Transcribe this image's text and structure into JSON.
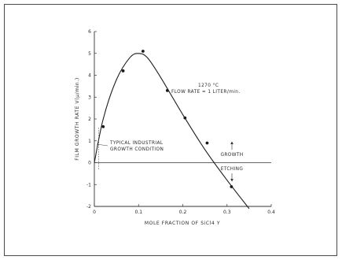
{
  "chart_data": {
    "type": "line",
    "xlabel": "MOLE FRACTION OF SiCl4 Y",
    "ylabel": "FILM GROWTH RATE V(μ/min.)",
    "xlim": [
      0,
      0.4
    ],
    "ylim": [
      -2,
      6
    ],
    "x_ticks": [
      "0",
      "0.1",
      "0.2",
      "0.3",
      "0.4"
    ],
    "y_ticks": [
      "-2",
      "-1",
      "0",
      "1",
      "2",
      "3",
      "4",
      "5",
      "6"
    ],
    "grid": false,
    "measured_points": [
      {
        "x": 0.02,
        "y": 1.65
      },
      {
        "x": 0.065,
        "y": 4.2
      },
      {
        "x": 0.11,
        "y": 5.1
      },
      {
        "x": 0.165,
        "y": 3.3
      },
      {
        "x": 0.205,
        "y": 2.05
      },
      {
        "x": 0.255,
        "y": 0.9
      },
      {
        "x": 0.31,
        "y": -1.1
      }
    ],
    "fitted_curve": {
      "x": [
        0,
        0.02,
        0.05,
        0.08,
        0.1,
        0.12,
        0.15,
        0.2,
        0.25,
        0.3,
        0.35
      ],
      "y": [
        0,
        2.0,
        3.8,
        4.8,
        5.0,
        4.8,
        3.9,
        2.2,
        0.6,
        -0.8,
        -2.1
      ]
    },
    "annotations": {
      "conditions_line1": "1270 °C",
      "conditions_line2": "FLOW RATE = 1 LITER/min.",
      "industrial_line1": "TYPICAL INDUSTRIAL",
      "industrial_line2": "GROWTH CONDITION",
      "growth": "GROWTH",
      "etching": "ETCHING"
    },
    "industrial_condition": {
      "x_from": 0.0,
      "x_to": 0.01
    }
  }
}
